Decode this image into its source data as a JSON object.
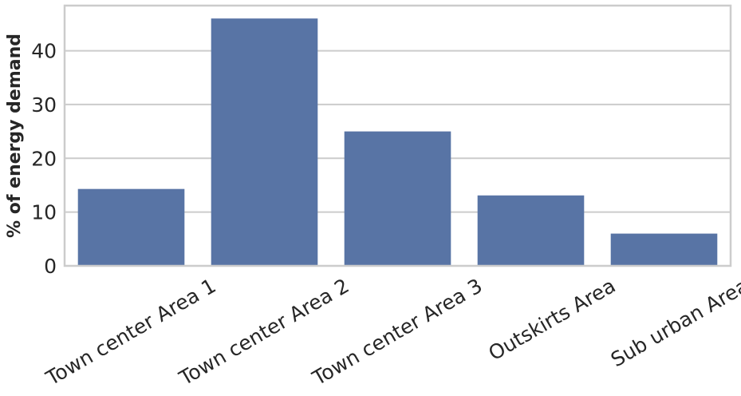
{
  "chart_data": {
    "type": "bar",
    "title": "",
    "xlabel": "",
    "ylabel": "% of energy demand",
    "categories": [
      "Town center Area 1",
      "Town center Area 2",
      "Town center Area 3",
      "Outskirts Area",
      "Sub urban Area"
    ],
    "values": [
      14.3,
      46.0,
      25.0,
      13.1,
      6.0
    ],
    "ylim": [
      0,
      48.4
    ],
    "yticks": [
      "0",
      "10",
      "20",
      "30",
      "40"
    ],
    "grid": "horizontal",
    "legend": "none",
    "bar_color": "#5874a5",
    "grid_color": "#cccccc",
    "axes_edge_color": "#cccccc"
  }
}
